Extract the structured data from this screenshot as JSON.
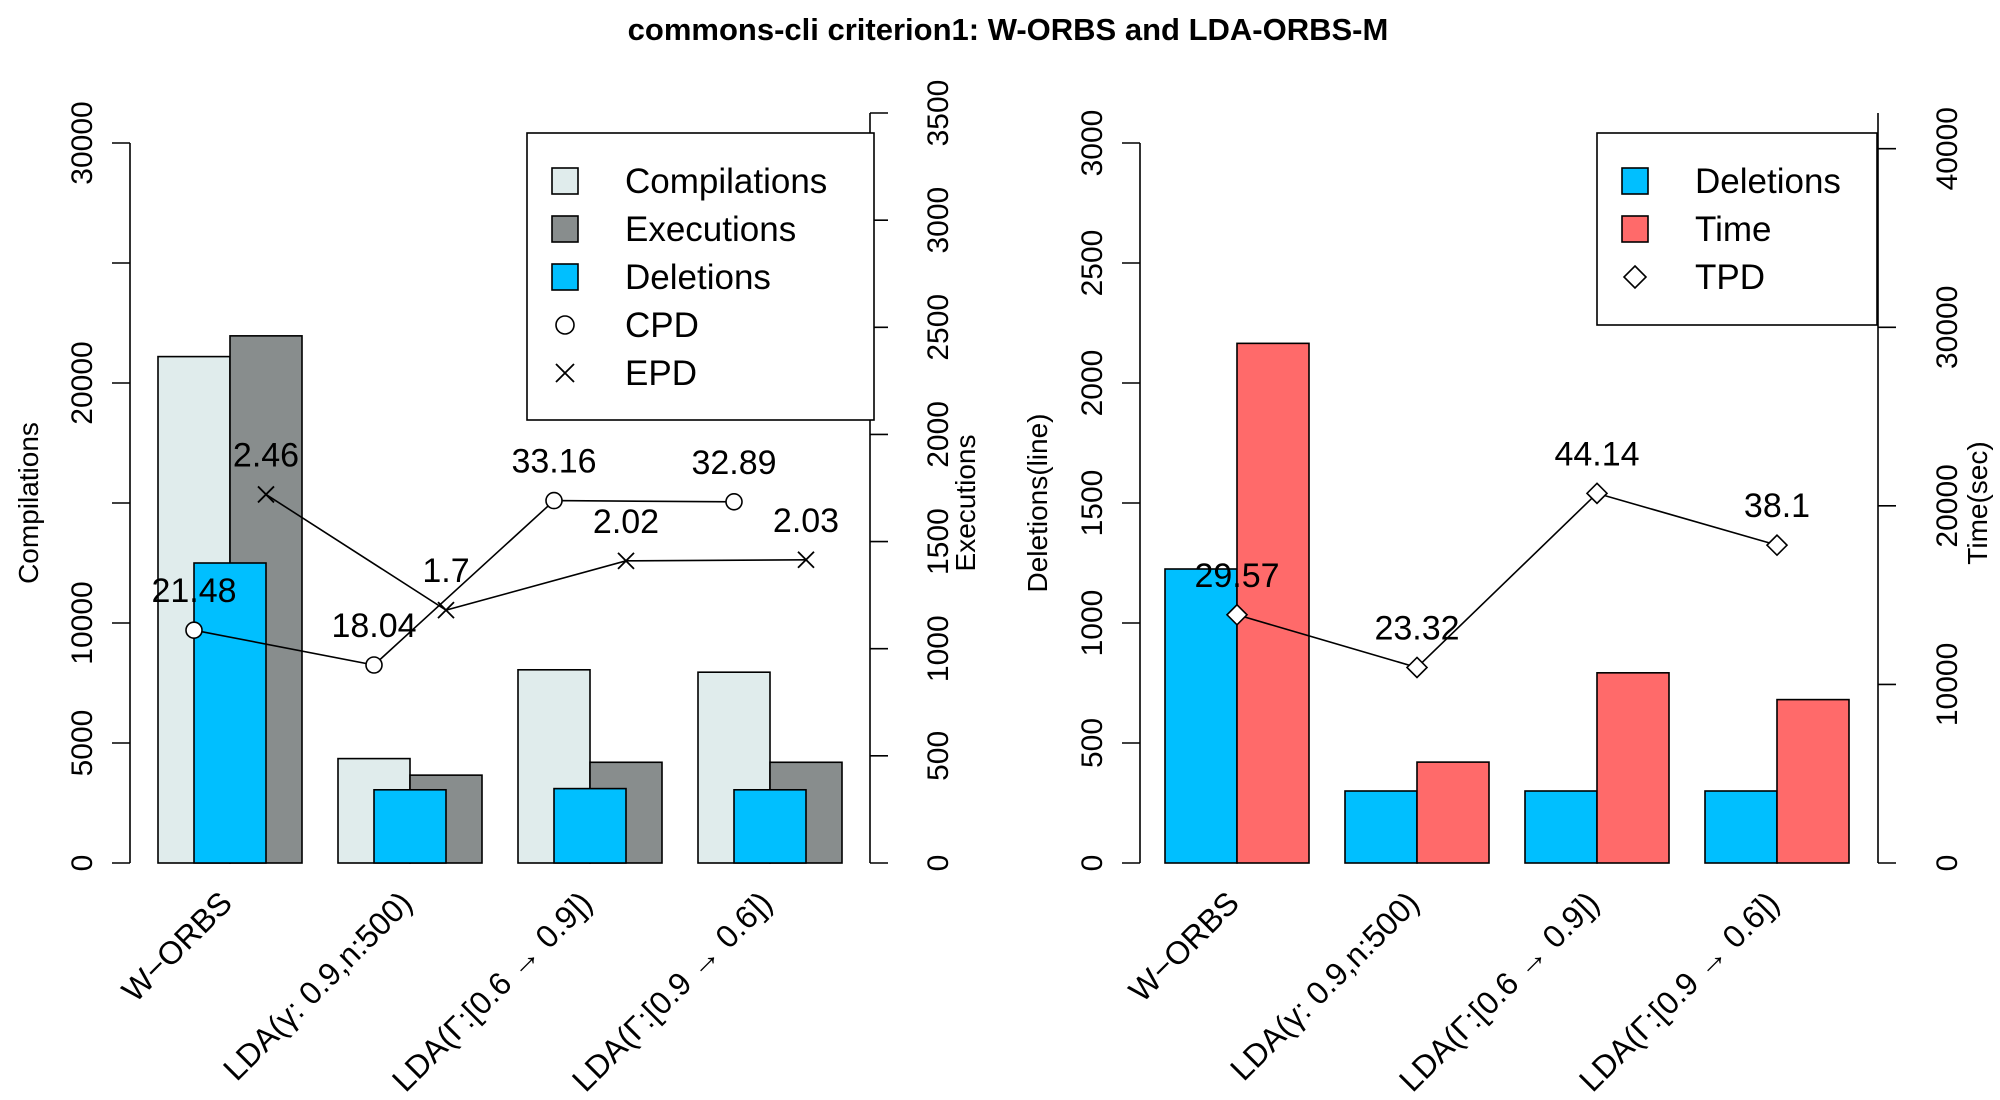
{
  "title": "commons-cli criterion1: W-ORBS and LDA-ORBS-M",
  "colors": {
    "compilations": "#e0ecec",
    "executions": "#888d8d",
    "deletions": "#00bfff",
    "time": "#ff6a6a",
    "line": "#000000"
  },
  "chart_data": [
    {
      "type": "bar",
      "categories": [
        "W−ORBS",
        "LDA(γ: 0.9,n:500)",
        "LDA(Γ:[0.6 → 0.9])",
        "LDA(Γ:[0.9 → 0.6])"
      ],
      "left_axis": {
        "label": "Compilations",
        "ylim": [
          0,
          30000
        ],
        "ticks": [
          0,
          5000,
          10000,
          20000,
          30000
        ],
        "minor_ticks": [
          15000,
          25000
        ]
      },
      "right_axis": {
        "label": "Executions",
        "ylim": [
          0,
          3500
        ],
        "ticks": [
          0,
          500,
          1000,
          1500,
          2000,
          2500,
          3000,
          3500
        ]
      },
      "series": [
        {
          "name": "Compilations",
          "axis": "left",
          "values": [
            21100,
            4350,
            8050,
            7950
          ]
        },
        {
          "name": "Executions",
          "axis": "right",
          "values": [
            2460,
            410,
            470,
            470
          ]
        },
        {
          "name": "Deletions",
          "axis": "left",
          "values": [
            12500,
            3050,
            3100,
            3050
          ]
        }
      ],
      "lines": [
        {
          "name": "CPD",
          "marker": "circle",
          "axis": "left",
          "values": [
            9700,
            8250,
            15100,
            15050
          ],
          "labels": [
            "21.48",
            "18.04",
            "33.16",
            "32.89"
          ]
        },
        {
          "name": "EPD",
          "marker": "cross",
          "axis": "right",
          "values": [
            1720,
            1180,
            1410,
            1415
          ],
          "labels": [
            "2.46",
            "1.7",
            "2.02",
            "2.03"
          ]
        }
      ],
      "legend": {
        "position": "top-right",
        "entries": [
          "Compilations",
          "Executions",
          "Deletions",
          "CPD",
          "EPD"
        ]
      }
    },
    {
      "type": "bar",
      "categories": [
        "W−ORBS",
        "LDA(γ: 0.9,n:500)",
        "LDA(Γ:[0.6 → 0.9])",
        "LDA(Γ:[0.9 → 0.6])"
      ],
      "left_axis": {
        "label": "Deletions(line)",
        "ylim": [
          0,
          3000
        ],
        "ticks": [
          0,
          500,
          1000,
          1500,
          2000,
          2500,
          3000
        ]
      },
      "right_axis": {
        "label": "Time(sec)",
        "ylim": [
          0,
          42000
        ],
        "ticks": [
          0,
          10000,
          20000,
          30000,
          40000
        ]
      },
      "series": [
        {
          "name": "Deletions",
          "axis": "left",
          "values": [
            1225,
            300,
            300,
            300
          ]
        },
        {
          "name": "Time",
          "axis": "right",
          "values": [
            29100,
            5650,
            10650,
            9150
          ]
        }
      ],
      "lines": [
        {
          "name": "TPD",
          "marker": "diamond",
          "axis": "right",
          "values": [
            13900,
            10950,
            20700,
            17800
          ],
          "labels": [
            "29.57",
            "23.32",
            "44.14",
            "38.1"
          ]
        }
      ],
      "legend": {
        "position": "top-right",
        "entries": [
          "Deletions",
          "Time",
          "TPD"
        ]
      }
    }
  ]
}
